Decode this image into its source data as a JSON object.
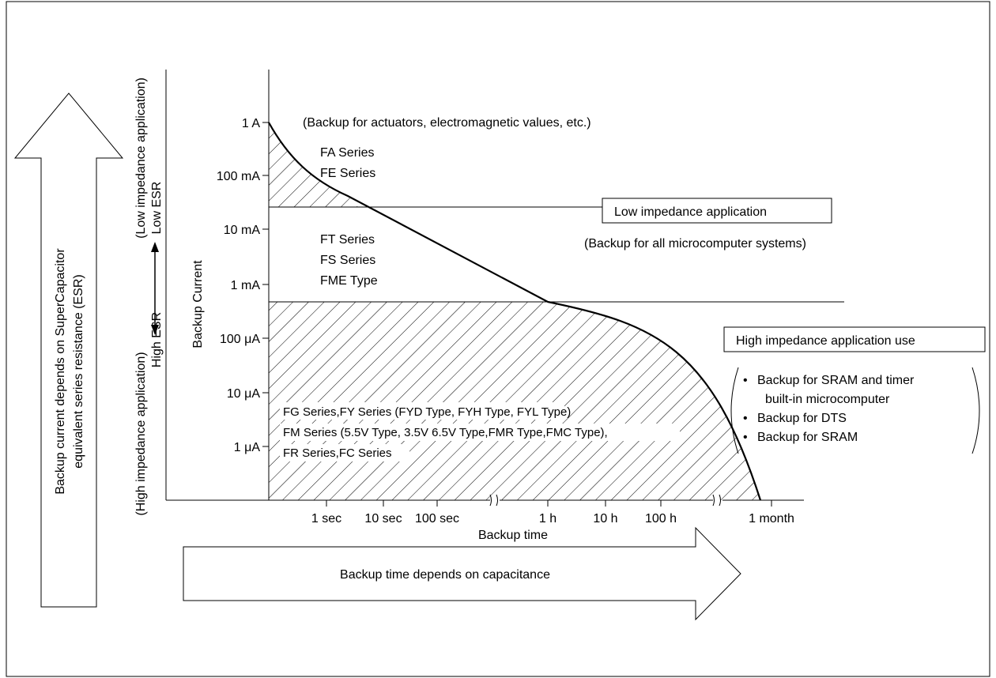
{
  "left_arrow": {
    "line1": "Backup current depends on SuperCapacitor",
    "line2": "equivalent series resistance (ESR)"
  },
  "esr_scale": {
    "low_impedance": "(Low impedance application)",
    "low_esr": "Low ESR",
    "high_impedance": "(High impedance application)",
    "high_esr": "High ESR"
  },
  "axes": {
    "ylabel": "Backup Current",
    "xlabel": "Backup time",
    "y_ticks": [
      "1 A",
      "100 mA",
      "10 mA",
      "1 mA",
      "100 μA",
      "10 μA",
      "1 μA"
    ],
    "x_ticks": [
      "1 sec",
      "10 sec",
      "100 sec",
      "1 h",
      "10 h",
      "100 h",
      "1 month"
    ]
  },
  "regions": {
    "actuators_note": "(Backup for actuators, electromagnetic values, etc.)",
    "top_series": [
      "FA Series",
      "FE Series"
    ],
    "middle_series": [
      "FT Series",
      "FS Series",
      "FME Type"
    ],
    "bottom_series": [
      "FG Series,FY Series (FYD Type, FYH Type, FYL Type)",
      "FM Series (5.5V Type, 3.5V 6.5V Type,FMR Type,FMC Type),",
      "FR Series,FC Series"
    ]
  },
  "low_impedance_box": "Low impedance application",
  "microcomputer_note": "(Backup for all microcomputer systems)",
  "high_impedance_box": "High impedance application use",
  "high_impedance_uses": {
    "item1_line1": "Backup for SRAM and timer",
    "item1_line2": "built-in microcomputer",
    "item2": "Backup for DTS",
    "item3": "Backup for SRAM"
  },
  "bottom_arrow": "Backup time depends on capacitance",
  "bullet": "•"
}
